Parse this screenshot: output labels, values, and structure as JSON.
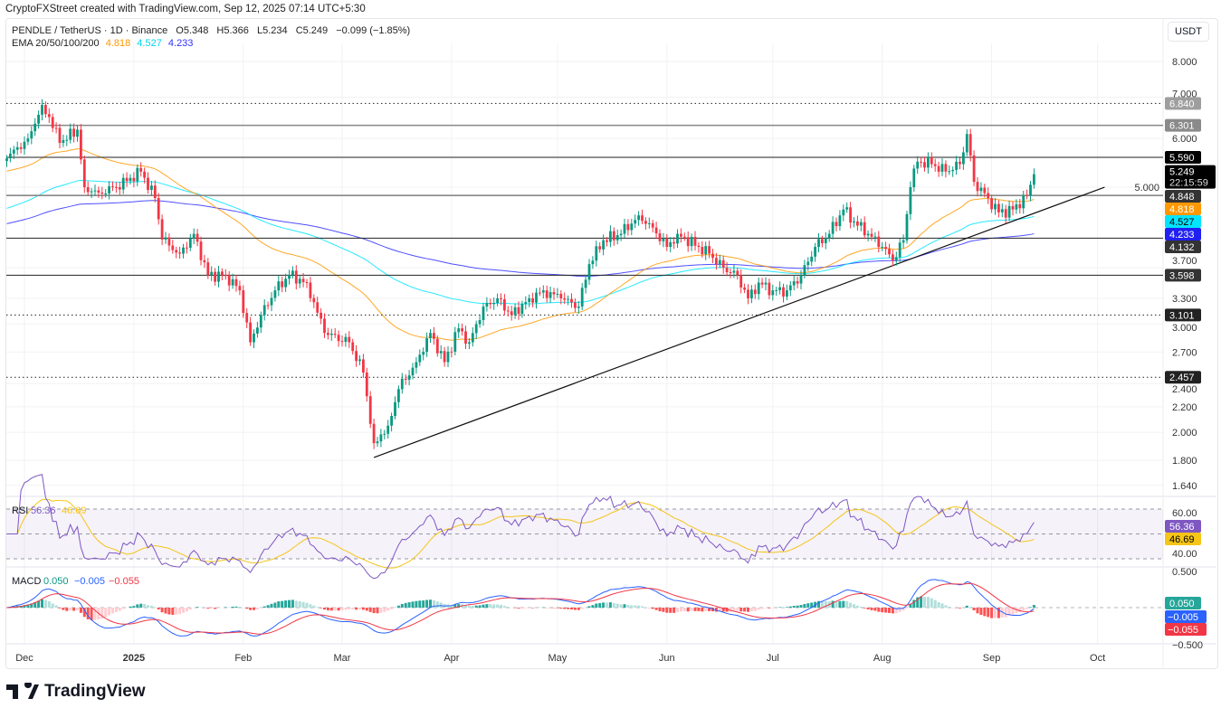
{
  "credit": "CryptoFXStreet created with TradingView.com, Sep 12, 2025 07:14 UTC+5:30",
  "header": {
    "symbol": "PENDLE / TetherUS · 1D · Binance",
    "open": "O5.348",
    "high": "H5.366",
    "low": "L5.234",
    "close": "C5.249",
    "change": "−0.099 (−1.85%)",
    "ema_label": "EMA 20/50/100/200",
    "ema_values": [
      "4.818",
      "4.527",
      "4.233"
    ]
  },
  "currency": "USDT",
  "brand": "TradingView",
  "colors": {
    "up": "#089981",
    "down": "#f23645",
    "ema50": "#ff9800",
    "ema100": "#00e5ff",
    "ema200": "#3030ff",
    "rsi": "#7e57c2",
    "rsi_ma": "#f5c518",
    "macd": "#2962ff",
    "signal": "#f23645"
  },
  "chart_data": {
    "type": "candlestick",
    "title": "PENDLE / TetherUS · 1D · Binance",
    "scale": "log",
    "ylim": [
      1.6,
      8.6
    ],
    "x_unit": "days since 2024-12-01",
    "anchors": [
      [
        -5,
        5.57
      ],
      [
        1,
        6.0
      ],
      [
        5,
        6.8
      ],
      [
        7,
        6.5
      ],
      [
        10,
        5.9
      ],
      [
        15,
        6.2
      ],
      [
        17,
        5.0
      ],
      [
        21,
        4.9
      ],
      [
        26,
        5.0
      ],
      [
        33,
        5.3
      ],
      [
        37,
        4.8
      ],
      [
        39,
        4.11
      ],
      [
        44,
        3.9
      ],
      [
        48,
        4.2
      ],
      [
        52,
        3.6
      ],
      [
        57,
        3.6
      ],
      [
        61,
        3.4
      ],
      [
        64,
        2.8
      ],
      [
        67,
        3.1
      ],
      [
        71,
        3.4
      ],
      [
        75,
        3.6
      ],
      [
        80,
        3.5
      ],
      [
        85,
        2.9
      ],
      [
        92,
        2.8
      ],
      [
        96,
        2.5
      ],
      [
        99,
        1.92
      ],
      [
        103,
        2.05
      ],
      [
        106,
        2.35
      ],
      [
        111,
        2.6
      ],
      [
        115,
        2.9
      ],
      [
        119,
        2.6
      ],
      [
        123,
        2.95
      ],
      [
        126,
        2.8
      ],
      [
        130,
        3.2
      ],
      [
        134,
        3.3
      ],
      [
        138,
        3.1
      ],
      [
        143,
        3.3
      ],
      [
        147,
        3.4
      ],
      [
        152,
        3.3
      ],
      [
        157,
        3.2
      ],
      [
        160,
        3.75
      ],
      [
        164,
        4.1
      ],
      [
        169,
        4.2
      ],
      [
        174,
        4.5
      ],
      [
        178,
        4.3
      ],
      [
        182,
        4.0
      ],
      [
        185,
        4.2
      ],
      [
        191,
        4.0
      ],
      [
        194,
        3.9
      ],
      [
        198,
        3.7
      ],
      [
        202,
        3.6
      ],
      [
        205,
        3.3
      ],
      [
        208,
        3.5
      ],
      [
        212,
        3.4
      ],
      [
        216,
        3.4
      ],
      [
        220,
        3.6
      ],
      [
        224,
        4.0
      ],
      [
        228,
        4.2
      ],
      [
        232,
        4.6
      ],
      [
        235,
        4.4
      ],
      [
        239,
        4.2
      ],
      [
        243,
        4.0
      ],
      [
        246,
        3.8
      ],
      [
        249,
        4.1
      ],
      [
        251,
        5.0
      ],
      [
        253,
        5.5
      ],
      [
        257,
        5.45
      ],
      [
        261,
        5.3
      ],
      [
        265,
        5.45
      ],
      [
        267,
        6.1
      ],
      [
        269,
        5.1
      ],
      [
        273,
        4.8
      ],
      [
        276,
        4.55
      ],
      [
        280,
        4.6
      ],
      [
        284,
        4.85
      ],
      [
        286,
        5.249
      ]
    ],
    "y_ticks": [
      "8.000",
      "7.000",
      "6.000",
      "5.000",
      "3.700",
      "3.300",
      "3.000",
      "2.700",
      "2.400",
      "2.200",
      "2.000",
      "1.800",
      "1.640"
    ],
    "x_ticks": [
      {
        "label": "Dec",
        "day": 0
      },
      {
        "label": "2025",
        "day": 31,
        "bold": true
      },
      {
        "label": "Feb",
        "day": 62
      },
      {
        "label": "Mar",
        "day": 90
      },
      {
        "label": "Apr",
        "day": 121
      },
      {
        "label": "May",
        "day": 151
      },
      {
        "label": "Jun",
        "day": 182
      },
      {
        "label": "Jul",
        "day": 212
      },
      {
        "label": "Aug",
        "day": 243
      },
      {
        "label": "Sep",
        "day": 274
      },
      {
        "label": "Oct",
        "day": 304
      }
    ],
    "levels": [
      {
        "value": 6.84,
        "label": "6.840",
        "style": "dotted",
        "tag": "#9e9e9e"
      },
      {
        "value": 6.301,
        "label": "6.301",
        "style": "solid-gray",
        "tag": "#8a8a8a"
      },
      {
        "value": 5.59,
        "label": "5.590",
        "style": "solid",
        "tag": "#000000"
      },
      {
        "value": 4.848,
        "label": "4.848",
        "style": "solid-gray",
        "tag": "#333333"
      },
      {
        "value": 4.132,
        "label": "4.132",
        "style": "solid",
        "tag": "#333333"
      },
      {
        "value": 3.598,
        "label": "3.598",
        "style": "solid",
        "tag": "#333333"
      },
      {
        "value": 3.101,
        "label": "3.101",
        "style": "dotted",
        "tag": "#222222"
      },
      {
        "value": 2.457,
        "label": "2.457",
        "style": "dotted",
        "tag": "#222222"
      }
    ],
    "trendline": [
      [
        99,
        1.82
      ],
      [
        306,
        5.0
      ]
    ],
    "last_price": {
      "value": "5.249",
      "countdown": "22:15:59"
    },
    "ema_tags": [
      {
        "label": "4.818",
        "value": 4.818,
        "color": "#ff9800"
      },
      {
        "label": "4.527",
        "value": 4.527,
        "color": "#00e5ff"
      },
      {
        "label": "4.233",
        "value": 4.233,
        "color": "#2020f0"
      }
    ],
    "rsi": {
      "label": "RSI",
      "value": "56.36",
      "ma": "46.69",
      "ticks": [
        "60.00",
        "40.00"
      ],
      "bands": [
        70,
        50,
        30
      ]
    },
    "macd": {
      "label": "MACD",
      "hist": "0.050",
      "macd": "−0.005",
      "signal": "−0.055",
      "ticks": [
        "0.500",
        "−0.500"
      ]
    }
  }
}
